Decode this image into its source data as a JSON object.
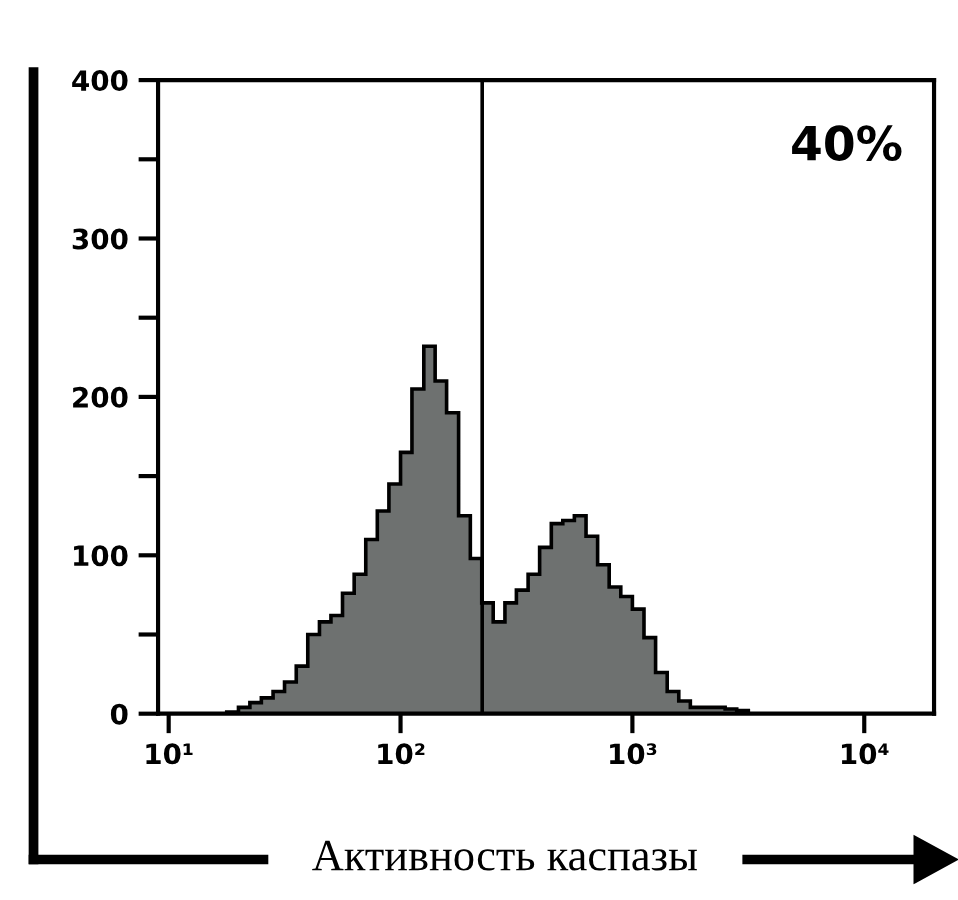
{
  "chart_data": {
    "type": "histogram",
    "xlabel": "Активность каспазы",
    "bins": [
      17.8,
      20.0,
      22.4,
      25.1,
      28.2,
      31.6,
      35.5,
      39.8,
      44.7,
      50.1,
      56.2,
      63.1,
      70.8,
      79.4,
      89.1,
      100,
      112,
      126,
      141,
      158,
      178,
      200,
      224,
      251,
      282,
      316,
      355,
      398,
      447,
      501,
      562,
      631,
      708,
      794,
      891,
      1000,
      1122,
      1259,
      1413,
      1585,
      1778,
      1995,
      2239,
      2512,
      2818,
      3162
    ],
    "values": [
      1,
      4,
      7,
      10,
      14,
      20,
      30,
      50,
      58,
      62,
      76,
      88,
      110,
      128,
      145,
      165,
      205,
      232,
      210,
      190,
      125,
      98,
      70,
      58,
      70,
      78,
      88,
      105,
      120,
      122,
      125,
      112,
      94,
      80,
      74,
      66,
      48,
      26,
      14,
      8,
      4,
      4,
      4,
      3,
      2
    ],
    "color": "#6e7170",
    "log": "x",
    "xlim": [
      9,
      20000
    ],
    "xticks": [
      {
        "value": 10,
        "label": "10¹"
      },
      {
        "value": 100,
        "label": "10²"
      },
      {
        "value": 1000,
        "label": "10³"
      },
      {
        "value": 10000,
        "label": "10⁴"
      }
    ],
    "ylim": [
      0,
      400
    ],
    "yticks": [
      0,
      {
        "value": 50,
        "label": null
      },
      100,
      {
        "value": 150,
        "label": null
      },
      200,
      {
        "value": 250,
        "label": null
      },
      300,
      {
        "value": 350,
        "label": null
      },
      400
    ],
    "ref_lines": [
      {
        "axis": "x",
        "value": 225,
        "label": null,
        "color": "#000000"
      }
    ],
    "annotations": [
      "40%"
    ],
    "grid": false
  }
}
